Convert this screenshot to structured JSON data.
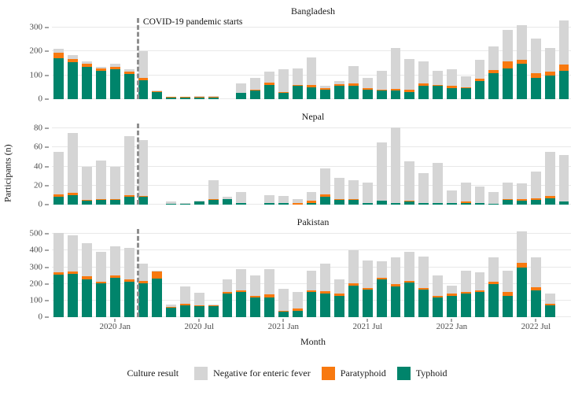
{
  "figure": {
    "y_axis_title": "Participants (n)",
    "x_axis_title": "Month"
  },
  "legend": {
    "title": "Culture result",
    "items": [
      {
        "key": "negative",
        "label": "Negative for enteric fever"
      },
      {
        "key": "paratyphoid",
        "label": "Paratyphoid"
      },
      {
        "key": "typhoid",
        "label": "Typhoid"
      }
    ]
  },
  "chart_data": {
    "type": "bar",
    "stacked": true,
    "grid": "horizontal-major",
    "legend_position": "bottom",
    "categories": [
      "2019 Sep",
      "2019 Oct",
      "2019 Nov",
      "2019 Dec",
      "2020 Jan",
      "2020 Feb",
      "2020 Mar",
      "2020 Apr",
      "2020 May",
      "2020 Jun",
      "2020 Jul",
      "2020 Aug",
      "2020 Sep",
      "2020 Oct",
      "2020 Nov",
      "2020 Dec",
      "2021 Jan",
      "2021 Feb",
      "2021 Mar",
      "2021 Apr",
      "2021 May",
      "2021 Jun",
      "2021 Jul",
      "2021 Aug",
      "2021 Sep",
      "2021 Oct",
      "2021 Nov",
      "2021 Dec",
      "2022 Jan",
      "2022 Feb",
      "2022 Mar",
      "2022 Apr",
      "2022 May",
      "2022 Jun",
      "2022 Jul",
      "2022 Aug",
      "2022 Sep"
    ],
    "xticks": [
      {
        "label": "2020 Jan",
        "index": 4
      },
      {
        "label": "2020 Jul",
        "index": 10
      },
      {
        "label": "2021 Jan",
        "index": 16
      },
      {
        "label": "2021 Jul",
        "index": 22
      },
      {
        "label": "2022 Jan",
        "index": 28
      },
      {
        "label": "2022 Jul",
        "index": 34
      }
    ],
    "colors": {
      "negative": "#d5d5d5",
      "paratyphoid": "#f8790f",
      "typhoid": "#00846b"
    },
    "covid_line_index": 5.55,
    "covid_line_label": "COVID-19 pandemic starts",
    "panels": [
      {
        "title": "Bangladesh",
        "ylim": [
          0,
          340
        ],
        "yticks": [
          0,
          100,
          200,
          300
        ],
        "annotation": "COVID-19 pandemic starts",
        "series": [
          {
            "key": "typhoid",
            "name": "Typhoid",
            "values": [
              170,
              155,
              135,
              120,
              125,
              105,
              80,
              30,
              8,
              8,
              8,
              8,
              0,
              25,
              35,
              60,
              25,
              55,
              50,
              40,
              55,
              55,
              40,
              35,
              35,
              30,
              55,
              55,
              45,
              45,
              75,
              110,
              130,
              150,
              90,
              100,
              120
            ]
          },
          {
            "key": "paratyphoid",
            "name": "Paratyphoid",
            "values": [
              25,
              15,
              12,
              8,
              10,
              10,
              10,
              3,
              1,
              1,
              2,
              2,
              0,
              3,
              5,
              8,
              5,
              5,
              8,
              5,
              8,
              10,
              5,
              5,
              8,
              10,
              10,
              5,
              10,
              5,
              10,
              12,
              30,
              15,
              20,
              15,
              25
            ]
          },
          {
            "key": "negative",
            "name": "Negative for enteric fever",
            "values": [
              15,
              15,
              13,
              7,
              15,
              10,
              110,
              2,
              1,
              1,
              2,
              2,
              0,
              37,
              50,
              47,
              95,
              70,
              117,
              10,
              12,
              75,
              45,
              80,
              172,
              130,
              95,
              60,
              70,
              45,
              80,
              98,
              130,
              145,
              145,
              100,
              185
            ]
          }
        ]
      },
      {
        "title": "Nepal",
        "ylim": [
          0,
          85
        ],
        "yticks": [
          0,
          20,
          40,
          60,
          80
        ],
        "annotation": null,
        "series": [
          {
            "key": "typhoid",
            "name": "Typhoid",
            "values": [
              8,
              10,
              4,
              5,
              5,
              8,
              8,
              0,
              1,
              1,
              3,
              5,
              6,
              2,
              0,
              2,
              2,
              0,
              2,
              8,
              5,
              5,
              2,
              4,
              2,
              3,
              2,
              2,
              2,
              2,
              2,
              1,
              5,
              4,
              5,
              7,
              3
            ]
          },
          {
            "key": "paratyphoid",
            "name": "Paratyphoid",
            "values": [
              3,
              2,
              1,
              1,
              1,
              2,
              1,
              0,
              0,
              0,
              0,
              1,
              0,
              0,
              0,
              0,
              0,
              2,
              2,
              3,
              1,
              1,
              0,
              0,
              0,
              1,
              0,
              0,
              0,
              1,
              0,
              0,
              1,
              2,
              2,
              2,
              0
            ]
          },
          {
            "key": "negative",
            "name": "Negative for enteric fever",
            "values": [
              44,
              63,
              35,
              40,
              34,
              62,
              59,
              0,
              2,
              1,
              1,
              20,
              2,
              11,
              0,
              8,
              7,
              4,
              9,
              27,
              22,
              20,
              21,
              61,
              79,
              41,
              31,
              42,
              13,
              20,
              17,
              12,
              17,
              16,
              28,
              46,
              49
            ]
          }
        ]
      },
      {
        "title": "Pakistan",
        "ylim": [
          0,
          530
        ],
        "yticks": [
          0,
          100,
          200,
          300,
          400,
          500
        ],
        "annotation": null,
        "series": [
          {
            "key": "typhoid",
            "name": "Typhoid",
            "values": [
              255,
              260,
              225,
              205,
              235,
              215,
              205,
              230,
              55,
              70,
              65,
              65,
              140,
              150,
              120,
              120,
              35,
              40,
              150,
              140,
              130,
              190,
              165,
              225,
              185,
              210,
              165,
              120,
              130,
              140,
              150,
              200,
              130,
              300,
              160,
              70,
              0
            ]
          },
          {
            "key": "paratyphoid",
            "name": "Paratyphoid",
            "values": [
              15,
              15,
              20,
              10,
              15,
              10,
              15,
              45,
              5,
              10,
              8,
              5,
              10,
              10,
              10,
              15,
              5,
              10,
              10,
              15,
              10,
              15,
              10,
              10,
              15,
              10,
              10,
              10,
              10,
              10,
              10,
              15,
              20,
              25,
              20,
              10,
              0
            ]
          },
          {
            "key": "negative",
            "name": "Negative for enteric fever",
            "values": [
              235,
              215,
              200,
              180,
              175,
              190,
              100,
              5,
              15,
              105,
              72,
              5,
              75,
              130,
              120,
              155,
              130,
              100,
              120,
              165,
              85,
              195,
              165,
              100,
              160,
              175,
              190,
              120,
              50,
              130,
              110,
              145,
              130,
              190,
              180,
              60,
              0
            ]
          }
        ]
      }
    ]
  }
}
